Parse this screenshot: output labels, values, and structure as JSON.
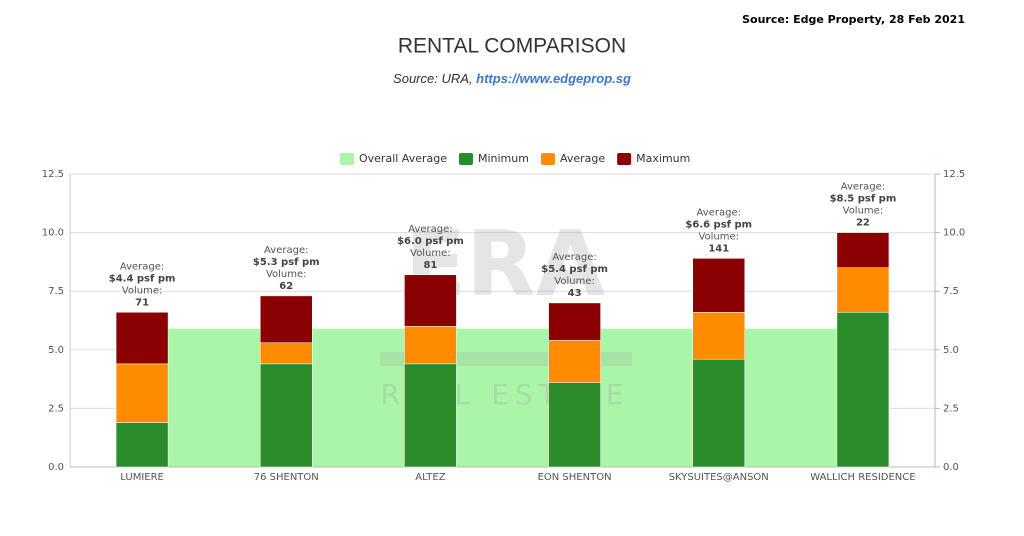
{
  "source_note": "Source: Edge Property, 28 Feb 2021",
  "watermark": [
    "ERA",
    "REAL ESTATE"
  ],
  "chart_data": {
    "type": "bar",
    "stacked": true,
    "title": "RENTAL COMPARISON",
    "subtitle": "Source: URA,",
    "subtitle_link": "https://www.edgeprop.sg",
    "categories": [
      "LUMIERE",
      "76 SHENTON",
      "ALTEZ",
      "EON SHENTON",
      "SKYSUITES@ANSON",
      "WALLICH RESIDENCE"
    ],
    "series": [
      {
        "name": "Overall Average",
        "color": "#aaf5a8",
        "render": "area",
        "values": [
          5.9,
          5.9,
          5.9,
          5.9,
          5.9,
          5.9
        ]
      },
      {
        "name": "Minimum",
        "color": "#2a8c2a",
        "values": [
          1.9,
          4.4,
          4.4,
          3.6,
          4.6,
          6.6
        ]
      },
      {
        "name": "Average",
        "color": "#ff8c00",
        "values": [
          2.5,
          0.9,
          1.6,
          1.8,
          2.0,
          1.9
        ]
      },
      {
        "name": "Maximum",
        "color": "#8b0000",
        "values": [
          2.2,
          2.0,
          2.2,
          1.6,
          2.3,
          1.5
        ]
      }
    ],
    "annotation_captions": [
      "Average:",
      "Volume:"
    ],
    "average_labels": [
      "$4.4 psf pm",
      "$5.3 psf pm",
      "$6.0 psf pm",
      "$5.4 psf pm",
      "$6.6 psf pm",
      "$8.5 psf pm"
    ],
    "volumes": [
      71,
      62,
      81,
      43,
      141,
      22
    ],
    "ylim": [
      0,
      12.5
    ],
    "yticks": [
      {
        "value": 0,
        "label": "0.0"
      },
      2.5,
      {
        "value": 5,
        "label": "5.0"
      },
      7.5,
      {
        "value": 10,
        "label": "10.0"
      },
      12.5
    ],
    "y2lim": [
      0,
      12.5
    ],
    "y2ticks": [
      {
        "value": 0,
        "label": "0.0"
      },
      2.5,
      {
        "value": 5,
        "label": "5.0"
      },
      7.5,
      {
        "value": 10,
        "label": "10.0"
      },
      12.5
    ],
    "grid": true,
    "legend": "top"
  }
}
